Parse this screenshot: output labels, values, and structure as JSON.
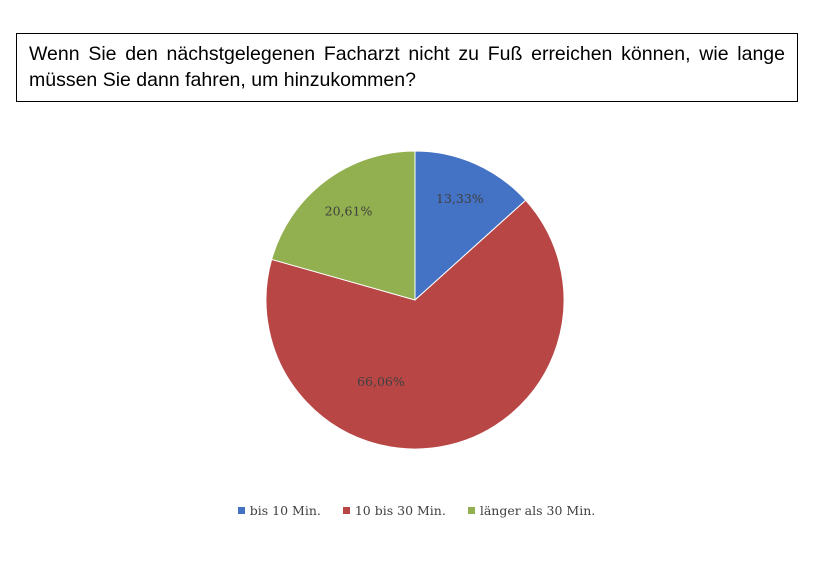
{
  "question": {
    "text": "Wenn Sie den nächstgelegenen Facharzt nicht zu Fuß erreichen können, wie lange müssen Sie dann fahren, um hinzukommen?"
  },
  "chart_data": {
    "type": "pie",
    "title": "",
    "slices": [
      {
        "name": "bis 10 Min.",
        "value": 13.33,
        "label": "13,33%",
        "color": "#4472C4"
      },
      {
        "name": "10 bis 30 Min.",
        "value": 66.06,
        "label": "66,06%",
        "color": "#B84645"
      },
      {
        "name": "länger als 30 Min.",
        "value": 20.61,
        "label": "20,61%",
        "color": "#92B04F"
      }
    ],
    "start_angle": "12 o'clock",
    "direction": "clockwise",
    "legend_position": "bottom"
  }
}
